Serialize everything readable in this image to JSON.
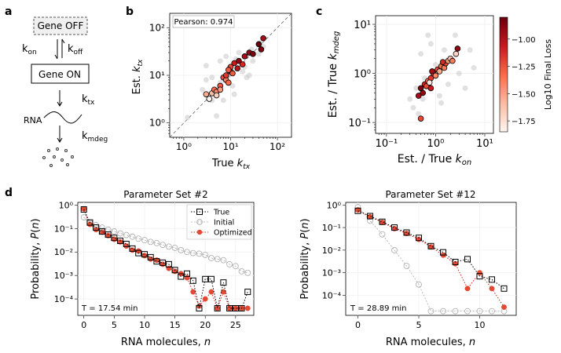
{
  "panels": {
    "a": {
      "letter": "a",
      "gene_off": "Gene OFF",
      "gene_on": "Gene ON",
      "k_on_base": "k",
      "k_on_sub": "on",
      "k_off_base": "k",
      "k_off_sub": "off",
      "k_tx_base": "k",
      "k_tx_sub": "tx",
      "k_mdeg_base": "k",
      "k_mdeg_sub": "mdeg",
      "rna_label": "RNA",
      "accent_red": "#c0102a"
    },
    "b": {
      "letter": "b"
    },
    "c": {
      "letter": "c"
    },
    "d": {
      "letter": "d"
    }
  },
  "chart_data": [
    {
      "id": "b",
      "type": "scatter",
      "title": "",
      "annotation": "Pearson: 0.974",
      "xlabel": "True k_tx",
      "ylabel": "Est. k_tx",
      "xscale": "log",
      "yscale": "log",
      "xlim": [
        0.5,
        200
      ],
      "ylim": [
        0.5,
        200
      ],
      "xticks": [
        {
          "v": 1,
          "label": "10⁰"
        },
        {
          "v": 10,
          "label": "10¹"
        },
        {
          "v": 100,
          "label": "10²"
        }
      ],
      "yticks": [
        {
          "v": 1,
          "label": "10⁰"
        },
        {
          "v": 10,
          "label": "10¹"
        },
        {
          "v": 100,
          "label": "10²"
        }
      ],
      "reference_line": "y = x (dashed)",
      "background_points": [
        [
          1.2,
          1.3
        ],
        [
          2.5,
          5
        ],
        [
          3,
          16
        ],
        [
          4,
          9
        ],
        [
          4,
          3
        ],
        [
          5,
          1.4
        ],
        [
          6,
          20
        ],
        [
          7,
          3
        ],
        [
          8,
          25
        ],
        [
          10,
          13
        ],
        [
          11,
          6
        ],
        [
          12,
          4
        ],
        [
          13,
          22
        ],
        [
          15,
          30
        ],
        [
          18,
          12
        ],
        [
          20,
          15
        ],
        [
          25,
          10
        ],
        [
          30,
          20
        ],
        [
          40,
          28
        ],
        [
          45,
          50
        ],
        [
          50,
          40
        ],
        [
          6,
          7
        ],
        [
          9,
          10
        ],
        [
          22,
          9
        ],
        [
          3,
          8
        ],
        [
          28,
          35
        ]
      ],
      "points": [
        [
          3,
          4,
          0.3
        ],
        [
          3.5,
          3.2,
          0.0
        ],
        [
          4,
          4.2,
          0.25
        ],
        [
          4.5,
          5,
          0.5
        ],
        [
          5,
          4.5,
          0.4
        ],
        [
          5,
          3.8,
          0.15
        ],
        [
          6,
          6,
          0.55
        ],
        [
          7,
          9,
          0.6
        ],
        [
          8,
          8,
          0.45
        ],
        [
          8,
          10,
          0.65
        ],
        [
          9,
          7,
          0.5
        ],
        [
          10,
          12,
          0.7
        ],
        [
          10,
          15,
          0.6
        ],
        [
          11,
          11,
          0.55
        ],
        [
          12,
          18,
          0.75
        ],
        [
          14,
          14,
          0.8
        ],
        [
          15,
          20,
          0.9
        ],
        [
          18,
          17,
          0.7
        ],
        [
          20,
          25,
          0.85
        ],
        [
          25,
          30,
          0.9
        ],
        [
          30,
          28,
          0.95
        ],
        [
          40,
          45,
          1.0
        ],
        [
          45,
          35,
          0.95
        ],
        [
          50,
          60,
          0.85
        ],
        [
          6,
          5,
          0.35
        ],
        [
          9,
          13,
          0.55
        ]
      ]
    },
    {
      "id": "c",
      "type": "scatter",
      "title": "",
      "xlabel": "Est. / True k_on",
      "ylabel": "Est. / True k_mdeg",
      "xscale": "log",
      "yscale": "log",
      "xlim": [
        0.06,
        15
      ],
      "ylim": [
        0.06,
        15
      ],
      "xticks": [
        {
          "v": 0.1,
          "label": "10⁻¹"
        },
        {
          "v": 1,
          "label": "10⁰"
        },
        {
          "v": 10,
          "label": "10¹"
        }
      ],
      "yticks": [
        {
          "v": 0.1,
          "label": "10⁻¹"
        },
        {
          "v": 1,
          "label": "10⁰"
        },
        {
          "v": 10,
          "label": "10¹"
        }
      ],
      "colorbar": {
        "label": "Log10 Final Loss",
        "range": [
          -1.85,
          -0.8
        ],
        "ticks": [
          {
            "v": -1.0,
            "label": "−1.00"
          },
          {
            "v": -1.25,
            "label": "−1.25"
          },
          {
            "v": -1.5,
            "label": "−1.50"
          },
          {
            "v": -1.75,
            "label": "−1.75"
          }
        ]
      },
      "background_points": [
        [
          0.3,
          0.3
        ],
        [
          0.35,
          0.2
        ],
        [
          0.4,
          0.5
        ],
        [
          0.5,
          2.5
        ],
        [
          0.6,
          0.8
        ],
        [
          0.8,
          4
        ],
        [
          1,
          1.5
        ],
        [
          1.2,
          0.35
        ],
        [
          1.5,
          3
        ],
        [
          1.8,
          0.6
        ],
        [
          2,
          2
        ],
        [
          3,
          1
        ],
        [
          4,
          0.5
        ],
        [
          5,
          3
        ],
        [
          6,
          1.3
        ],
        [
          0.7,
          6
        ],
        [
          0.45,
          0.15
        ],
        [
          0.55,
          0.3
        ],
        [
          1.3,
          0.25
        ],
        [
          2.5,
          6
        ]
      ],
      "points": [
        [
          0.45,
          0.35,
          0.85
        ],
        [
          0.5,
          0.5,
          0.95
        ],
        [
          0.55,
          0.4,
          0.9
        ],
        [
          0.6,
          0.6,
          0.7
        ],
        [
          0.65,
          0.55,
          0.6
        ],
        [
          0.7,
          0.7,
          0.5
        ],
        [
          0.8,
          0.8,
          0.65
        ],
        [
          0.9,
          1.0,
          0.55
        ],
        [
          1.0,
          0.9,
          0.4
        ],
        [
          1.1,
          1.2,
          0.6
        ],
        [
          1.2,
          1.1,
          0.3
        ],
        [
          1.3,
          1.4,
          0.5
        ],
        [
          1.5,
          1.3,
          0.45
        ],
        [
          1.6,
          1.6,
          0.6
        ],
        [
          1.8,
          1.8,
          0.35
        ],
        [
          2.0,
          2.0,
          0.2
        ],
        [
          2.2,
          1.8,
          0.45
        ],
        [
          2.6,
          2.5,
          0.15
        ],
        [
          2.8,
          3.2,
          0.9
        ],
        [
          0.75,
          0.65,
          0.05
        ],
        [
          0.8,
          0.5,
          0.75
        ],
        [
          1.4,
          1.7,
          0.7
        ],
        [
          0.5,
          0.12,
          0.6
        ],
        [
          0.85,
          1.1,
          0.85
        ]
      ]
    },
    {
      "id": "d1",
      "type": "line",
      "title": "Parameter Set #2",
      "xlabel": "RNA molecules, n",
      "ylabel": "Probability, P(n)",
      "yscale": "log",
      "xlim": [
        -1,
        28
      ],
      "ylim": [
        2e-05,
        1.3
      ],
      "xticks": [
        {
          "v": 0,
          "label": "0"
        },
        {
          "v": 5,
          "label": "5"
        },
        {
          "v": 10,
          "label": "10"
        },
        {
          "v": 15,
          "label": "15"
        },
        {
          "v": 20,
          "label": "20"
        },
        {
          "v": 25,
          "label": "25"
        }
      ],
      "yticks": [
        {
          "v": 1,
          "label": "10⁰"
        },
        {
          "v": 0.1,
          "label": "10⁻¹"
        },
        {
          "v": 0.01,
          "label": "10⁻²"
        },
        {
          "v": 0.001,
          "label": "10⁻³"
        },
        {
          "v": 0.0001,
          "label": "10⁻⁴"
        }
      ],
      "annotation": "T = 17.54 min",
      "legend": {
        "position": "top-right",
        "entries": [
          "True",
          "Initial",
          "Optimized"
        ]
      },
      "series": [
        {
          "name": "True",
          "x": [
            0,
            1,
            2,
            3,
            4,
            5,
            6,
            7,
            8,
            9,
            10,
            11,
            12,
            13,
            14,
            15,
            16,
            17,
            18,
            19,
            20,
            21,
            22,
            23,
            24,
            25,
            26,
            27
          ],
          "values": [
            0.65,
            0.18,
            0.11,
            0.075,
            0.055,
            0.04,
            0.03,
            0.022,
            0.014,
            0.009,
            0.008,
            0.006,
            0.004,
            0.0035,
            0.003,
            0.0017,
            0.0009,
            0.0012,
            0.0006,
            4e-05,
            0.0007,
            0.0007,
            4e-05,
            0.0005,
            4e-05,
            4e-05,
            4e-05,
            0.0002
          ]
        },
        {
          "name": "Initial",
          "x": [
            0,
            1,
            2,
            3,
            4,
            5,
            6,
            7,
            8,
            9,
            10,
            11,
            12,
            13,
            14,
            15,
            16,
            17,
            18,
            19,
            20,
            21,
            22,
            23,
            24,
            25,
            26,
            27
          ],
          "values": [
            0.3,
            0.17,
            0.14,
            0.11,
            0.09,
            0.075,
            0.062,
            0.053,
            0.045,
            0.037,
            0.032,
            0.027,
            0.024,
            0.02,
            0.017,
            0.015,
            0.012,
            0.01,
            0.009,
            0.0085,
            0.0075,
            0.0055,
            0.005,
            0.0045,
            0.003,
            0.0025,
            0.0015,
            0.0013
          ]
        },
        {
          "name": "Optimized",
          "x": [
            0,
            1,
            2,
            3,
            4,
            5,
            6,
            7,
            8,
            9,
            10,
            11,
            12,
            13,
            14,
            15,
            16,
            17,
            18,
            19,
            20,
            21,
            22,
            23,
            24,
            25,
            26,
            27
          ],
          "values": [
            0.68,
            0.15,
            0.09,
            0.07,
            0.05,
            0.035,
            0.027,
            0.018,
            0.012,
            0.011,
            0.007,
            0.005,
            0.0045,
            0.003,
            0.002,
            0.0015,
            0.0012,
            0.0008,
            0.0002,
            5e-05,
            0.0001,
            0.0002,
            4e-05,
            0.0002,
            4e-05,
            4e-05,
            4e-05,
            4e-05
          ]
        }
      ]
    },
    {
      "id": "d2",
      "type": "line",
      "title": "Parameter Set #12",
      "xlabel": "RNA molecules, n",
      "ylabel": "Probability, P(n)",
      "yscale": "log",
      "xlim": [
        -1,
        13
      ],
      "ylim": [
        1.3e-05,
        1.3
      ],
      "xticks": [
        {
          "v": 0,
          "label": "0"
        },
        {
          "v": 5,
          "label": "5"
        },
        {
          "v": 10,
          "label": "10"
        }
      ],
      "yticks": [
        {
          "v": 1,
          "label": "10⁰"
        },
        {
          "v": 0.1,
          "label": "10⁻¹"
        },
        {
          "v": 0.01,
          "label": "10⁻²"
        },
        {
          "v": 0.001,
          "label": "10⁻³"
        },
        {
          "v": 0.0001,
          "label": "10⁻⁴"
        }
      ],
      "annotation": "T = 28.89 min",
      "series": [
        {
          "name": "True",
          "x": [
            0,
            1,
            2,
            3,
            4,
            5,
            6,
            7,
            8,
            9,
            10,
            11,
            12
          ],
          "values": [
            0.55,
            0.32,
            0.18,
            0.1,
            0.06,
            0.035,
            0.015,
            0.008,
            0.003,
            0.004,
            0.0007,
            0.0005,
            0.0002
          ]
        },
        {
          "name": "Initial",
          "x": [
            0,
            1,
            2,
            3,
            4,
            5,
            6,
            7,
            8,
            9,
            10,
            11,
            12
          ],
          "values": [
            0.8,
            0.2,
            0.05,
            0.01,
            0.002,
            0.0003,
            2e-05,
            2e-05,
            2e-05,
            2e-05,
            2e-05,
            2e-05,
            2e-05
          ]
        },
        {
          "name": "Optimized",
          "x": [
            0,
            1,
            2,
            3,
            4,
            5,
            6,
            7,
            8,
            9,
            10,
            11,
            12
          ],
          "values": [
            0.6,
            0.3,
            0.17,
            0.09,
            0.055,
            0.03,
            0.014,
            0.006,
            0.0025,
            0.0002,
            0.001,
            0.0002,
            3e-05
          ]
        }
      ]
    }
  ]
}
